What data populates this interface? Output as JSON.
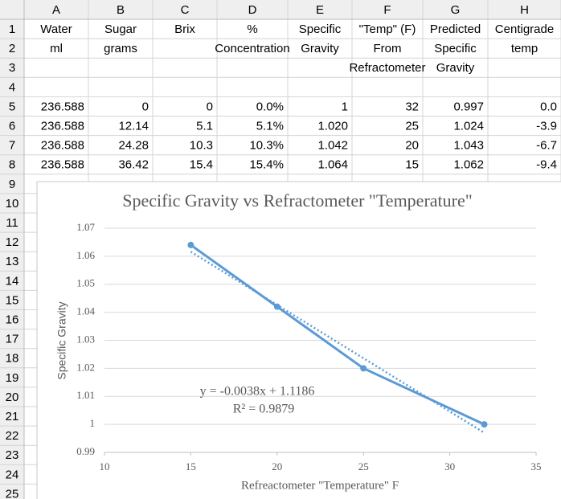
{
  "sheet": {
    "columns": [
      "A",
      "B",
      "C",
      "D",
      "E",
      "F",
      "G",
      "H"
    ],
    "row_numbers": [
      1,
      2,
      3,
      4,
      5,
      6,
      7,
      8,
      9,
      10,
      11,
      12,
      13,
      14,
      15,
      16,
      17,
      18,
      19,
      20,
      21,
      22,
      23,
      24,
      25
    ],
    "rows": [
      [
        "Water",
        "Sugar",
        "Brix",
        "%",
        "Specific",
        "\"Temp\" (F)",
        "Predicted",
        "Centigrade"
      ],
      [
        "ml",
        "grams",
        null,
        "Concentration",
        "Gravity",
        "From",
        "Specific",
        "temp"
      ],
      [
        null,
        null,
        null,
        null,
        null,
        "Refractometer",
        "Gravity",
        null
      ],
      [
        null,
        null,
        null,
        null,
        null,
        null,
        null,
        null
      ],
      [
        "236.588",
        "0",
        "0",
        "0.0%",
        "1",
        "32",
        "0.997",
        "0.0"
      ],
      [
        "236.588",
        "12.14",
        "5.1",
        "5.1%",
        "1.020",
        "25",
        "1.024",
        "-3.9"
      ],
      [
        "236.588",
        "24.28",
        "10.3",
        "10.3%",
        "1.042",
        "20",
        "1.043",
        "-6.7"
      ],
      [
        "236.588",
        "36.42",
        "15.4",
        "15.4%",
        "1.064",
        "15",
        "1.062",
        "-9.4"
      ]
    ]
  },
  "chart_data": {
    "type": "line",
    "title": "Specific Gravity vs Refractometer \"Temperature\"",
    "x_label": "Refreactometer \"Temperature\" F",
    "y_label": "Specific Gravity",
    "x": [
      15,
      20,
      25,
      32
    ],
    "series": [
      {
        "color": "#5b9bd5",
        "values": [
          1.064,
          1.042,
          1.02,
          1
        ]
      }
    ],
    "xlim": [
      10,
      35
    ],
    "xticks": [
      10,
      15,
      20,
      25,
      30,
      35
    ],
    "ylim": [
      0.99,
      1.07
    ],
    "yticks": [
      0.99,
      1,
      1.01,
      1.02,
      1.03,
      1.04,
      1.05,
      1.06,
      1.07
    ],
    "grid": true,
    "trendline": {
      "equation": "y = -0.0038x + 1.1186",
      "r2_label": "R² = 0.9879",
      "slope": -0.0038,
      "intercept": 1.1186
    }
  }
}
